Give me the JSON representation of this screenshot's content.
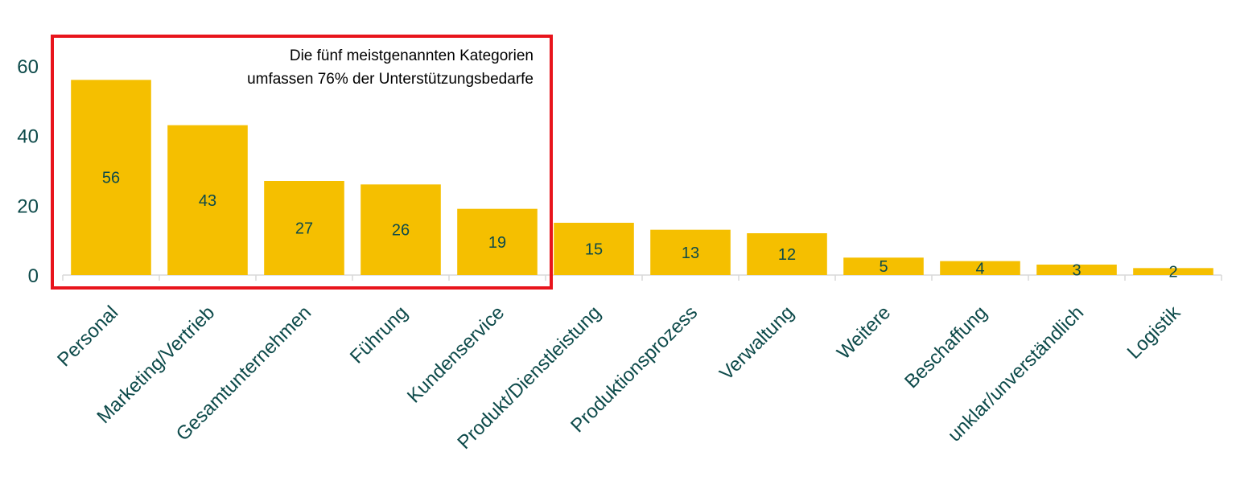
{
  "colors": {
    "bar": "#F5BF00",
    "text": "#0D4A4A",
    "annotation_text": "#000000",
    "highlight_border": "#E8141C",
    "axis": "#D9D9D9"
  },
  "annotation": {
    "line1": "Die fünf meistgenannten Kategorien",
    "line2": "umfassen 76% der Unterstützungsbedarfe"
  },
  "chart_data": {
    "type": "bar",
    "title": "",
    "xlabel": "",
    "ylabel": "",
    "categories": [
      "Personal",
      "Marketing/Vertrieb",
      "Gesamtunternehmen",
      "Führung",
      "Kundenservice",
      "Produkt/Dienstleistung",
      "Produktionsprozess",
      "Verwaltung",
      "Weitere",
      "Beschaffung",
      "unklar/unverständlich",
      "Logistik"
    ],
    "values": [
      56,
      43,
      27,
      26,
      19,
      15,
      13,
      12,
      5,
      4,
      3,
      2
    ],
    "ylim": [
      0,
      60
    ],
    "yticks": [
      "0",
      "20",
      "40",
      "60"
    ],
    "grid": false,
    "legend": "none",
    "highlighted_count": 5
  }
}
